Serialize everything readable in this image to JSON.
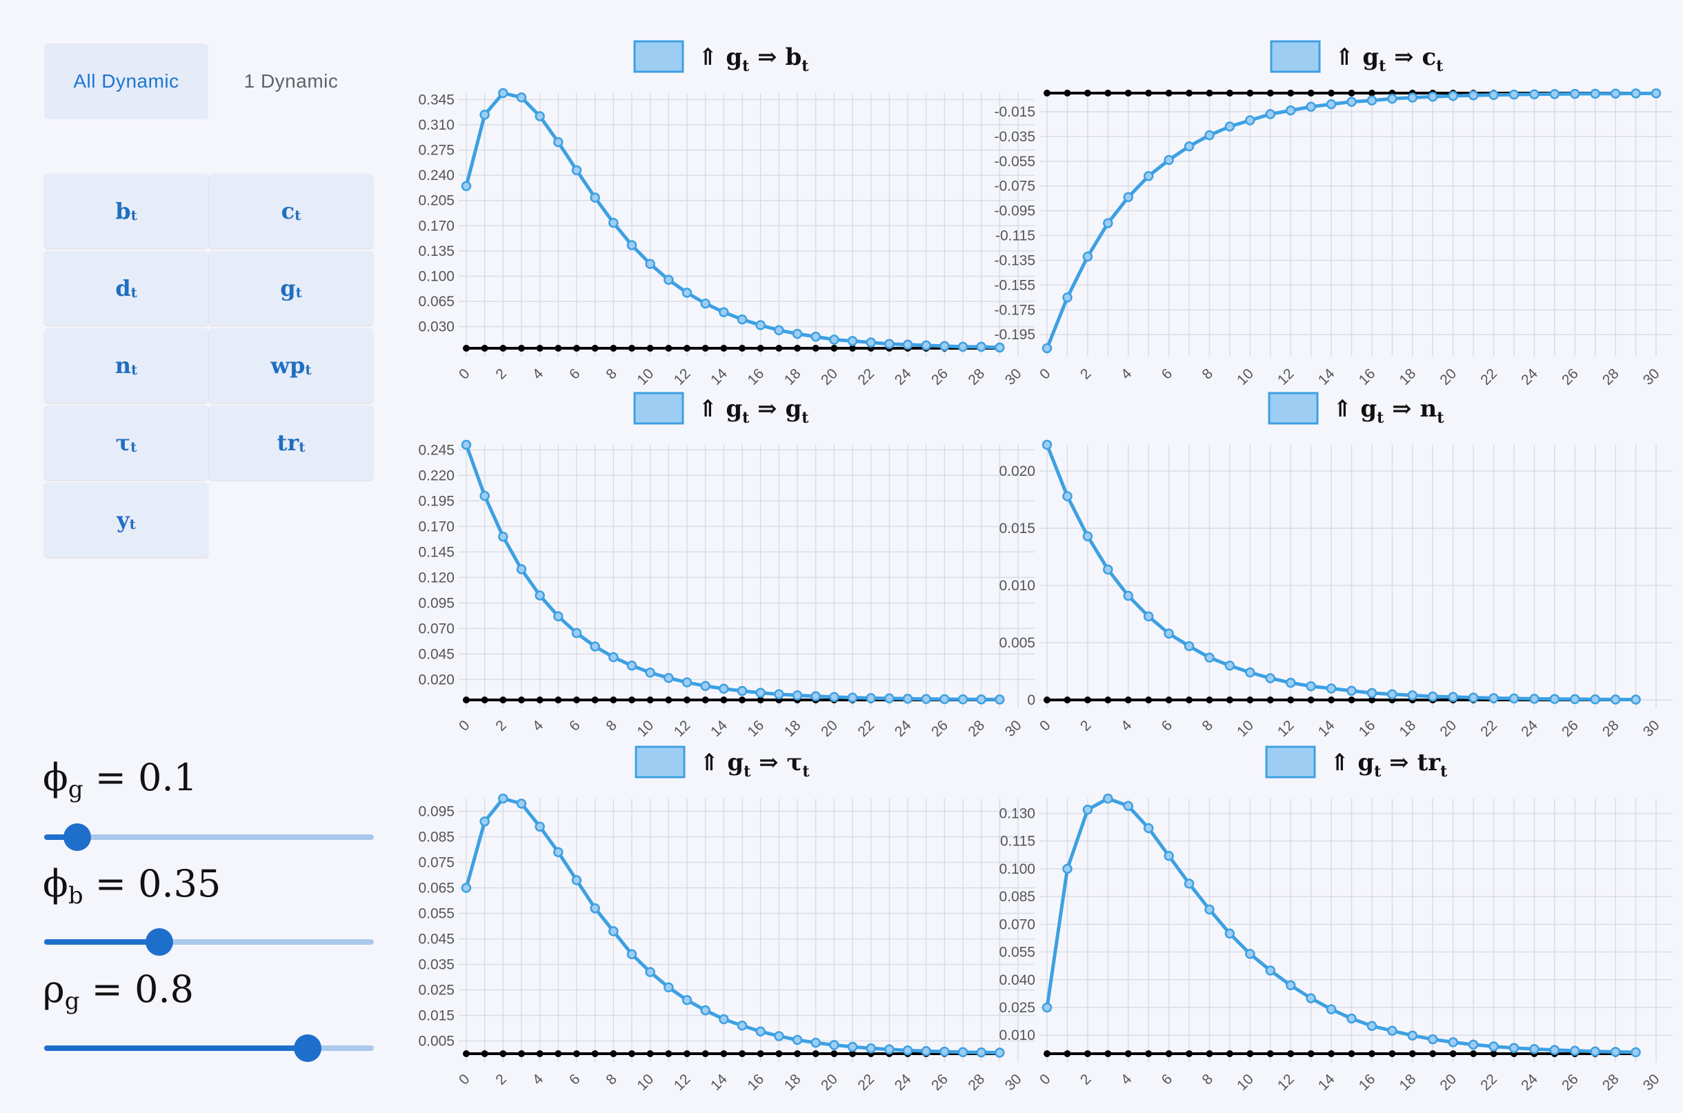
{
  "tabs": [
    {
      "label": "All Dynamic",
      "active": true
    },
    {
      "label": "1 Dynamic",
      "active": false
    }
  ],
  "variables": [
    {
      "base": "b",
      "sub": "t"
    },
    {
      "base": "c",
      "sub": "t"
    },
    {
      "base": "d",
      "sub": "t"
    },
    {
      "base": "g",
      "sub": "t"
    },
    {
      "base": "n",
      "sub": "t"
    },
    {
      "base": "wp",
      "sub": "t"
    },
    {
      "base": "τ",
      "sub": "t"
    },
    {
      "base": "tr",
      "sub": "t"
    },
    {
      "base": "y",
      "sub": "t"
    }
  ],
  "parameters": [
    {
      "symbol": "ϕ",
      "sub": "g",
      "value": "0.1",
      "fraction": 0.1
    },
    {
      "symbol": "ϕ",
      "sub": "b",
      "value": "0.35",
      "fraction": 0.35
    },
    {
      "symbol": "ρ",
      "sub": "g",
      "value": "0.8",
      "fraction": 0.8
    }
  ],
  "colors": {
    "accent": "#1976d2",
    "series": "#3da0e2",
    "legend_fill": "#9ecdf3",
    "baseline": "#000000",
    "grid": "#d9dce6"
  },
  "chart_data": [
    {
      "type": "line",
      "legend": {
        "prefix": "⇑ g",
        "prefix_sub": "t",
        "arrow": "⇒",
        "var": "b",
        "var_sub": "t"
      },
      "x": [
        0,
        1,
        2,
        3,
        4,
        5,
        6,
        7,
        8,
        9,
        10,
        11,
        12,
        13,
        14,
        15,
        16,
        17,
        18,
        19,
        20,
        21,
        22,
        23,
        24,
        25,
        26,
        27,
        28,
        29
      ],
      "values": [
        0.225,
        0.324,
        0.354,
        0.348,
        0.322,
        0.286,
        0.247,
        0.209,
        0.174,
        0.143,
        0.117,
        0.095,
        0.077,
        0.062,
        0.05,
        0.04,
        0.032,
        0.025,
        0.02,
        0.016,
        0.012,
        0.01,
        0.008,
        0.006,
        0.005,
        0.004,
        0.003,
        0.002,
        0.002,
        0.001
      ],
      "baseline": 0,
      "xticks": [
        "0",
        "2",
        "4",
        "6",
        "8",
        "10",
        "12",
        "14",
        "16",
        "18",
        "20",
        "22",
        "24",
        "26",
        "28",
        "30"
      ],
      "yticks": [
        "0.030",
        "0.065",
        "0.100",
        "0.135",
        "0.170",
        "0.205",
        "0.240",
        "0.275",
        "0.310",
        "0.345"
      ],
      "ylim": [
        0.0,
        0.354
      ]
    },
    {
      "type": "line",
      "legend": {
        "prefix": "⇑ g",
        "prefix_sub": "t",
        "arrow": "⇒",
        "var": "c",
        "var_sub": "t"
      },
      "x": [
        0,
        1,
        2,
        3,
        4,
        5,
        6,
        7,
        8,
        9,
        10,
        11,
        12,
        13,
        14,
        15,
        16,
        17,
        18,
        19,
        20,
        21,
        22,
        23,
        24,
        25,
        26,
        27,
        28,
        29,
        30
      ],
      "values": [
        -0.206,
        -0.165,
        -0.132,
        -0.105,
        -0.084,
        -0.067,
        -0.054,
        -0.043,
        -0.034,
        -0.027,
        -0.022,
        -0.017,
        -0.014,
        -0.011,
        -0.009,
        -0.007,
        -0.006,
        -0.0045,
        -0.0036,
        -0.0029,
        -0.0023,
        -0.0018,
        -0.0015,
        -0.0012,
        -0.001,
        -0.0008,
        -0.0006,
        -0.0005,
        -0.0004,
        -0.0003,
        -0.0002
      ],
      "baseline": 0,
      "xticks": [
        "0",
        "2",
        "4",
        "6",
        "8",
        "10",
        "12",
        "14",
        "16",
        "18",
        "20",
        "22",
        "24",
        "26",
        "28",
        "30"
      ],
      "yticks": [
        "-0.195",
        "-0.175",
        "-0.155",
        "-0.135",
        "-0.115",
        "-0.095",
        "-0.075",
        "-0.055",
        "-0.035",
        "-0.015"
      ],
      "ylim": [
        -0.206,
        0.0
      ]
    },
    {
      "type": "line",
      "legend": {
        "prefix": "⇑ g",
        "prefix_sub": "t",
        "arrow": "⇒",
        "var": "g",
        "var_sub": "t"
      },
      "x": [
        0,
        1,
        2,
        3,
        4,
        5,
        6,
        7,
        8,
        9,
        10,
        11,
        12,
        13,
        14,
        15,
        16,
        17,
        18,
        19,
        20,
        21,
        22,
        23,
        24,
        25,
        26,
        27,
        28,
        29
      ],
      "values": [
        0.25,
        0.2,
        0.16,
        0.128,
        0.1024,
        0.0819,
        0.0655,
        0.0524,
        0.0419,
        0.0336,
        0.0268,
        0.0215,
        0.0172,
        0.0137,
        0.011,
        0.0088,
        0.007,
        0.0056,
        0.0045,
        0.0036,
        0.0029,
        0.0023,
        0.0018,
        0.0015,
        0.0012,
        0.0009,
        0.0008,
        0.0006,
        0.0005,
        0.0004
      ],
      "baseline": 0,
      "xticks": [
        "0",
        "2",
        "4",
        "6",
        "8",
        "10",
        "12",
        "14",
        "16",
        "18",
        "20",
        "22",
        "24",
        "26",
        "28",
        "30"
      ],
      "yticks": [
        "0.020",
        "0.045",
        "0.070",
        "0.095",
        "0.120",
        "0.145",
        "0.170",
        "0.195",
        "0.220",
        "0.245"
      ],
      "ylim": [
        0.0,
        0.25
      ]
    },
    {
      "type": "line",
      "legend": {
        "prefix": "⇑ g",
        "prefix_sub": "t",
        "arrow": "⇒",
        "var": "n",
        "var_sub": "t"
      },
      "x": [
        0,
        1,
        2,
        3,
        4,
        5,
        6,
        7,
        8,
        9,
        10,
        11,
        12,
        13,
        14,
        15,
        16,
        17,
        18,
        19,
        20,
        21,
        22,
        23,
        24,
        25,
        26,
        27,
        28,
        29
      ],
      "values": [
        0.0223,
        0.0178,
        0.0143,
        0.0114,
        0.0091,
        0.0073,
        0.0058,
        0.0047,
        0.0037,
        0.003,
        0.0024,
        0.0019,
        0.0015,
        0.0012,
        0.001,
        0.0008,
        0.0006,
        0.0005,
        0.0004,
        0.0003,
        0.00026,
        0.0002,
        0.00016,
        0.00013,
        0.0001,
        8e-05,
        7e-05,
        5e-05,
        4e-05,
        3e-05
      ],
      "baseline": 0,
      "xticks": [
        "0",
        "2",
        "4",
        "6",
        "8",
        "10",
        "12",
        "14",
        "16",
        "18",
        "20",
        "22",
        "24",
        "26",
        "28",
        "30"
      ],
      "yticks": [
        "0",
        "0.005",
        "0.010",
        "0.015",
        "0.020"
      ],
      "ylim": [
        0.0,
        0.0223
      ]
    },
    {
      "type": "line",
      "legend": {
        "prefix": "⇑ g",
        "prefix_sub": "t",
        "arrow": "⇒",
        "var": "τ",
        "var_sub": "t"
      },
      "x": [
        0,
        1,
        2,
        3,
        4,
        5,
        6,
        7,
        8,
        9,
        10,
        11,
        12,
        13,
        14,
        15,
        16,
        17,
        18,
        19,
        20,
        21,
        22,
        23,
        24,
        25,
        26,
        27,
        28,
        29
      ],
      "values": [
        0.065,
        0.091,
        0.1,
        0.098,
        0.089,
        0.079,
        0.068,
        0.057,
        0.048,
        0.039,
        0.032,
        0.026,
        0.021,
        0.017,
        0.0135,
        0.011,
        0.0087,
        0.0069,
        0.0054,
        0.0043,
        0.0034,
        0.0027,
        0.0021,
        0.0017,
        0.0013,
        0.001,
        0.0008,
        0.0006,
        0.0005,
        0.0004
      ],
      "baseline": 0,
      "xticks": [
        "0",
        "2",
        "4",
        "6",
        "8",
        "10",
        "12",
        "14",
        "16",
        "18",
        "20",
        "22",
        "24",
        "26",
        "28",
        "30"
      ],
      "yticks": [
        "0.005",
        "0.015",
        "0.025",
        "0.035",
        "0.045",
        "0.055",
        "0.065",
        "0.075",
        "0.085",
        "0.095"
      ],
      "ylim": [
        0.0,
        0.1
      ]
    },
    {
      "type": "line",
      "legend": {
        "prefix": "⇑ g",
        "prefix_sub": "t",
        "arrow": "⇒",
        "var": "tr",
        "var_sub": "t"
      },
      "x": [
        0,
        1,
        2,
        3,
        4,
        5,
        6,
        7,
        8,
        9,
        10,
        11,
        12,
        13,
        14,
        15,
        16,
        17,
        18,
        19,
        20,
        21,
        22,
        23,
        24,
        25,
        26,
        27,
        28,
        29
      ],
      "values": [
        0.025,
        0.1,
        0.132,
        0.138,
        0.134,
        0.122,
        0.107,
        0.092,
        0.078,
        0.065,
        0.054,
        0.045,
        0.037,
        0.03,
        0.024,
        0.019,
        0.015,
        0.0124,
        0.0098,
        0.0078,
        0.0062,
        0.0049,
        0.0039,
        0.0031,
        0.0025,
        0.002,
        0.0016,
        0.0012,
        0.001,
        0.0008
      ],
      "baseline": 0,
      "xticks": [
        "0",
        "2",
        "4",
        "6",
        "8",
        "10",
        "12",
        "14",
        "16",
        "18",
        "20",
        "22",
        "24",
        "26",
        "28",
        "30"
      ],
      "yticks": [
        "0.010",
        "0.025",
        "0.040",
        "0.055",
        "0.070",
        "0.085",
        "0.100",
        "0.115",
        "0.130"
      ],
      "ylim": [
        0.0,
        0.138
      ]
    }
  ]
}
